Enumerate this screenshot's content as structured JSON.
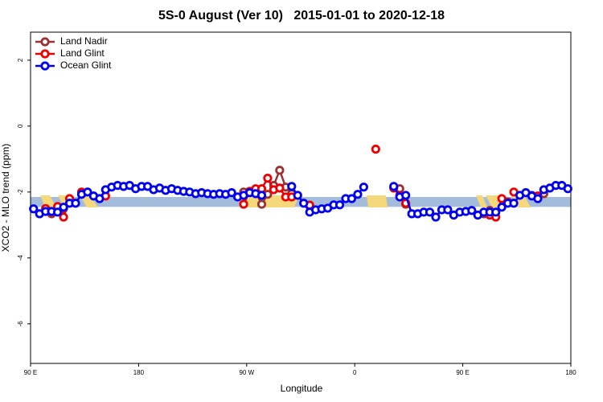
{
  "chart_data": {
    "type": "line",
    "title": "5S-0 August (Ver 10)   2015-01-01 to 2020-12-18",
    "x_label": "Longitude",
    "y_label": "XCO2 - MLO trend (ppm)",
    "xlim": [
      90,
      540
    ],
    "ylim": [
      -7.2,
      2.85
    ],
    "xticks": [
      {
        "value": 90,
        "label": "90 E"
      },
      180,
      {
        "value": 270,
        "label": "90 W"
      },
      {
        "value": 360,
        "label": "0"
      },
      {
        "value": 450,
        "label": "90 E"
      },
      {
        "value": 540,
        "label": "180"
      }
    ],
    "yticks": [
      2,
      0,
      -2,
      -4,
      -6
    ],
    "band": [
      -2.45,
      -2.15
    ],
    "band_color": "#a4bcdc",
    "legend": "top-left",
    "x": [
      92.5,
      97.5,
      102.5,
      107.5,
      112.5,
      117.5,
      122.5,
      127.5,
      132.5,
      137.5,
      142.5,
      147.5,
      152.5,
      157.5,
      162.5,
      167.5,
      172.5,
      177.5,
      182.5,
      187.5,
      192.5,
      197.5,
      202.5,
      207.5,
      212.5,
      217.5,
      222.5,
      227.5,
      232.5,
      237.5,
      242.5,
      247.5,
      252.5,
      257.5,
      262.5,
      267.5,
      272.5,
      277.5,
      282.5,
      287.5,
      292.5,
      297.5,
      302.5,
      307.5,
      312.5,
      317.5,
      322.5,
      327.5,
      332.5,
      337.5,
      342.5,
      347.5,
      352.5,
      357.5,
      362.5,
      367.5,
      372.5,
      377.5,
      382.5,
      387.5,
      392.5,
      397.5,
      402.5,
      407.5,
      412.5,
      417.5,
      422.5,
      427.5,
      432.5,
      437.5,
      442.5,
      447.5,
      452.5,
      457.5,
      462.5,
      467.5,
      472.5,
      477.5,
      482.5,
      487.5,
      492.5,
      497.5,
      502.5,
      507.5,
      512.5,
      517.5,
      522.5,
      527.5,
      532.5,
      537.5
    ],
    "series": [
      {
        "name": "Land Nadir",
        "color": "#993333",
        "values": [
          null,
          null,
          null,
          -2.66,
          null,
          -2.5,
          null,
          null,
          null,
          null,
          null,
          null,
          null,
          null,
          null,
          null,
          null,
          null,
          null,
          null,
          null,
          null,
          null,
          null,
          null,
          null,
          null,
          null,
          null,
          null,
          null,
          null,
          null,
          null,
          null,
          -2.0,
          null,
          -2.0,
          -2.37,
          -2.07,
          -1.8,
          -1.34,
          -1.85,
          -2.05,
          null,
          null,
          -2.4,
          null,
          null,
          null,
          null,
          null,
          null,
          null,
          null,
          null,
          null,
          null,
          null,
          null,
          null,
          -1.9,
          -2.37,
          null,
          null,
          null,
          null,
          null,
          null,
          null,
          null,
          null,
          null,
          null,
          null,
          -2.66,
          -2.56,
          null,
          null,
          -2.3,
          null,
          null,
          null,
          -2.1,
          null,
          -2.05,
          null,
          null,
          null,
          null
        ]
      },
      {
        "name": "Land Glint",
        "color": "#ee0000",
        "values": [
          null,
          null,
          -2.5,
          null,
          -2.44,
          -2.76,
          -2.2,
          null,
          -2.0,
          null,
          null,
          null,
          -2.12,
          null,
          null,
          null,
          null,
          null,
          null,
          null,
          null,
          null,
          null,
          null,
          null,
          null,
          null,
          null,
          null,
          null,
          null,
          null,
          null,
          null,
          null,
          -2.37,
          -1.98,
          -1.9,
          -1.9,
          -1.58,
          -1.93,
          -1.88,
          -2.15,
          -2.15,
          null,
          null,
          -2.4,
          null,
          null,
          null,
          null,
          null,
          null,
          null,
          null,
          null,
          null,
          -0.7,
          null,
          null,
          -1.88,
          -2.1,
          -2.34,
          null,
          null,
          null,
          null,
          null,
          null,
          null,
          null,
          null,
          null,
          null,
          null,
          null,
          -2.7,
          -2.76,
          -2.2,
          null,
          -2.0,
          null,
          null,
          null,
          -2.12,
          null,
          null,
          null,
          null,
          null
        ]
      },
      {
        "name": "Ocean Glint",
        "color": "#0000ee",
        "values": [
          -2.51,
          -2.66,
          -2.59,
          -2.59,
          -2.61,
          -2.46,
          -2.34,
          -2.34,
          -2.07,
          -2.0,
          -2.12,
          -2.2,
          -1.93,
          -1.85,
          -1.8,
          -1.83,
          -1.8,
          -1.9,
          -1.83,
          -1.83,
          -1.93,
          -1.88,
          -1.95,
          -1.9,
          -1.95,
          -1.98,
          -2.0,
          -2.05,
          -2.02,
          -2.05,
          -2.07,
          -2.05,
          -2.07,
          -2.02,
          -2.15,
          -2.1,
          -2.02,
          -2.05,
          -2.1,
          null,
          null,
          null,
          null,
          -1.83,
          -2.1,
          -2.34,
          -2.61,
          -2.54,
          -2.51,
          -2.49,
          -2.39,
          -2.39,
          -2.2,
          -2.2,
          -2.07,
          -1.85,
          null,
          null,
          null,
          null,
          -1.83,
          -2.15,
          -2.1,
          -2.66,
          -2.66,
          -2.61,
          -2.61,
          -2.76,
          -2.54,
          -2.54,
          -2.7,
          -2.61,
          -2.59,
          -2.56,
          -2.7,
          -2.61,
          -2.61,
          -2.61,
          -2.46,
          -2.34,
          -2.34,
          -2.1,
          -2.02,
          -2.12,
          -2.2,
          -1.93,
          -1.88,
          -1.8,
          -1.8,
          -1.9
        ]
      }
    ]
  }
}
